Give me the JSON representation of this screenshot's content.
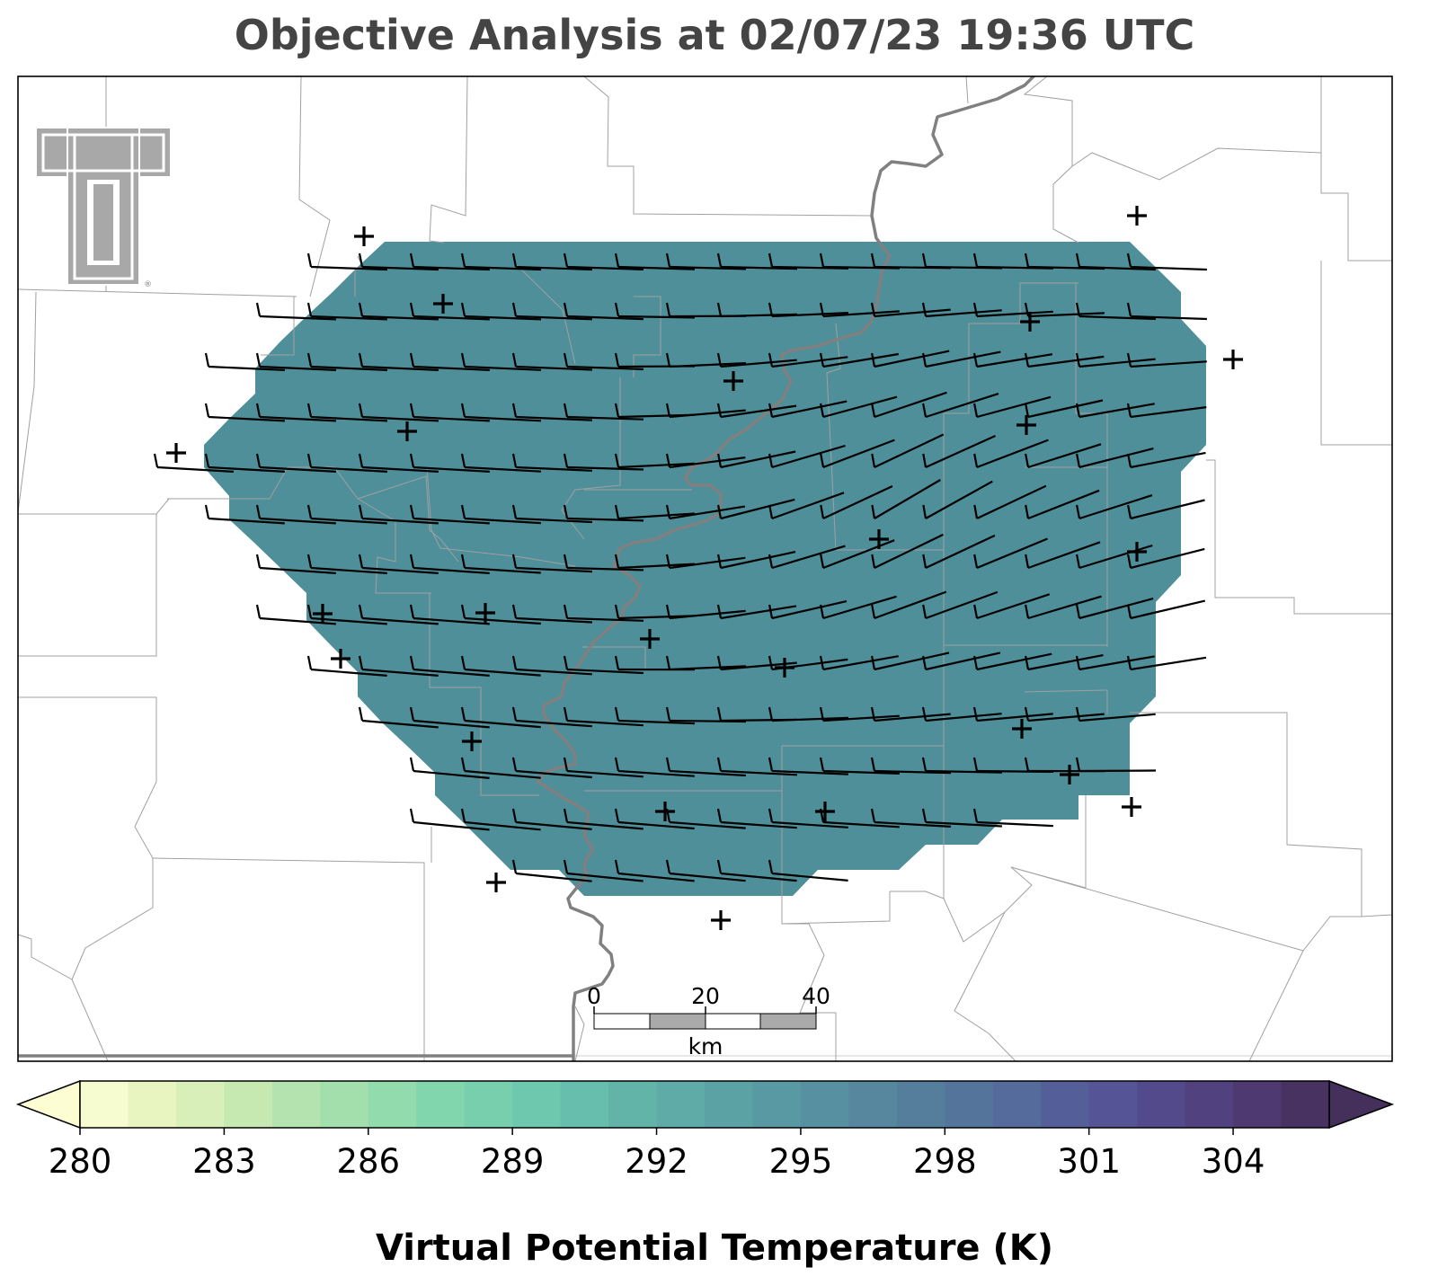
{
  "title": "Objective Analysis at 02/07/23 19:36 UTC",
  "colorbar": {
    "label": "Virtual Potential Temperature (K)",
    "ticks": [
      "280",
      "283",
      "286",
      "289",
      "292",
      "295",
      "298",
      "301",
      "304"
    ],
    "min": 280,
    "max": 306,
    "colors": [
      "#f6fbd0",
      "#e9f5c0",
      "#d9efb9",
      "#c6e9b2",
      "#b4e3af",
      "#a2dfad",
      "#92dbac",
      "#82d6ad",
      "#78cfae",
      "#6ec8ae",
      "#67beac",
      "#62b4a9",
      "#5eaba7",
      "#5ba2a5",
      "#5999a3",
      "#5790a1",
      "#56879f",
      "#557e9d",
      "#54749c",
      "#546b9b",
      "#545f99",
      "#545496",
      "#534a8c",
      "#52417f",
      "#4e3971",
      "#483261"
    ],
    "under_color": "#fdfdd4",
    "over_color": "#44305a"
  },
  "field": {
    "analyzed_value_K": 294.5,
    "fill_color": "#4f8f9a"
  },
  "scale_bar": {
    "ticks": [
      "0",
      "20",
      "40"
    ],
    "unit": "km"
  },
  "logo": {
    "name": "texas-tech-double-t-logo",
    "mark": "®"
  },
  "colors": {
    "barb": "#000000",
    "river": "#808080",
    "county_lines": "#a0a0a0",
    "title": "#444444"
  }
}
